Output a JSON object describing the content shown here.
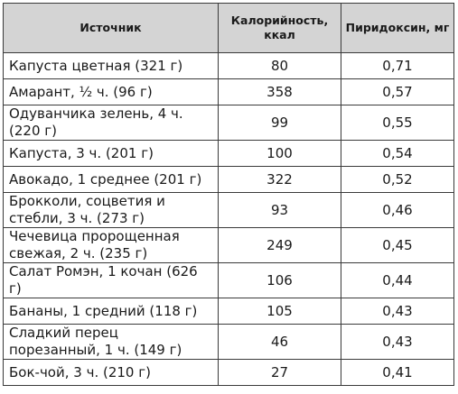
{
  "table": {
    "headers": {
      "source": "Источник",
      "calories": "Калорийность, ккал",
      "pyridoxine": "Пиридоксин, мг"
    },
    "rows": [
      {
        "source": "Капуста цветная (321 г)",
        "calories": "80",
        "pyridoxine": "0,71"
      },
      {
        "source": "Амарант, ½ ч. (96 г)",
        "calories": "358",
        "pyridoxine": "0,57"
      },
      {
        "source": "Одуванчика зелень, 4 ч. (220 г)",
        "calories": "99",
        "pyridoxine": "0,55"
      },
      {
        "source": "Капуста, 3 ч. (201 г)",
        "calories": "100",
        "pyridoxine": "0,54"
      },
      {
        "source": "Авокадо, 1 среднее (201 г)",
        "calories": "322",
        "pyridoxine": "0,52"
      },
      {
        "source": "Брокколи, соцветия и стебли, 3 ч. (273 г)",
        "calories": "93",
        "pyridoxine": "0,46"
      },
      {
        "source": "Чечевица пророщенная свежая, 2 ч. (235 г)",
        "calories": "249",
        "pyridoxine": "0,45"
      },
      {
        "source": "Салат Ромэн, 1 кочан (626 г)",
        "calories": "106",
        "pyridoxine": "0,44"
      },
      {
        "source": "Бананы, 1 средний (118 г)",
        "calories": "105",
        "pyridoxine": "0,43"
      },
      {
        "source": "Сладкий перец порезанный, 1 ч. (149 г)",
        "calories": "46",
        "pyridoxine": "0,43"
      },
      {
        "source": "Бок-чой, 3 ч. (210 г)",
        "calories": "27",
        "pyridoxine": "0,41"
      }
    ]
  },
  "colors": {
    "header_background": "#d4d4d4",
    "border": "#3a3a3a",
    "text": "#1a1a1a"
  }
}
